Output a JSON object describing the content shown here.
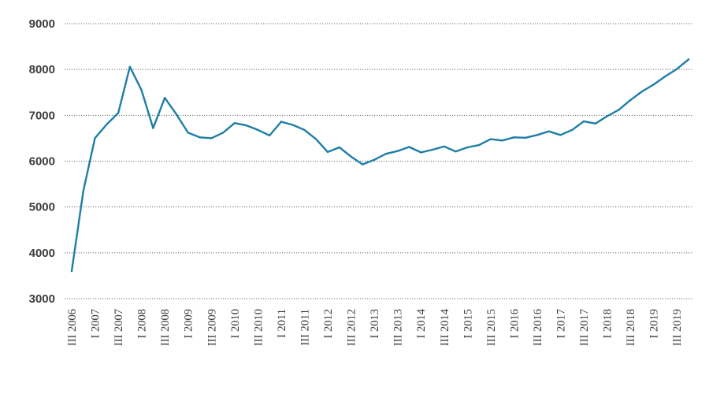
{
  "chart_data": {
    "type": "line",
    "title": "",
    "xlabel": "",
    "ylabel": "",
    "ylim": [
      3000,
      9000
    ],
    "y_ticks": [
      "3000",
      "4000",
      "5000",
      "6000",
      "7000",
      "8000",
      "9000"
    ],
    "grid": true,
    "legend": "none",
    "x_tick_labels": [
      "III 2006",
      "I 2007",
      "III 2007",
      "I 2008",
      "III 2008",
      "I 2009",
      "III 2009",
      "I 2010",
      "III 2010",
      "I 2011",
      "III 2011",
      "I 2012",
      "III 2012",
      "I 2013",
      "III 2013",
      "I 2014",
      "III 2014",
      "I 2015",
      "III 2015",
      "I 2016",
      "III 2016",
      "I 2017",
      "III 2017",
      "I 2018",
      "III 2018",
      "I 2019",
      "III 2019"
    ],
    "x": [
      "III 2006",
      "IV 2006",
      "I 2007",
      "II 2007",
      "III 2007",
      "IV 2007",
      "I 2008",
      "II 2008",
      "III 2008",
      "IV 2008",
      "I 2009",
      "II 2009",
      "III 2009",
      "IV 2009",
      "I 2010",
      "II 2010",
      "III 2010",
      "IV 2010",
      "I 2011",
      "II 2011",
      "III 2011",
      "IV 2011",
      "I 2012",
      "II 2012",
      "III 2012",
      "IV 2012",
      "I 2013",
      "II 2013",
      "III 2013",
      "IV 2013",
      "I 2014",
      "II 2014",
      "III 2014",
      "IV 2014",
      "I 2015",
      "II 2015",
      "III 2015",
      "IV 2015",
      "I 2016",
      "II 2016",
      "III 2016",
      "IV 2016",
      "I 2017",
      "II 2017",
      "III 2017",
      "IV 2017",
      "I 2018",
      "II 2018",
      "III 2018",
      "IV 2018",
      "I 2019",
      "II 2019",
      "III 2019",
      "IV 2019"
    ],
    "series": [
      {
        "color": "#1f7ea6",
        "values": [
          3600,
          5350,
          6500,
          6800,
          7050,
          8060,
          7550,
          6720,
          7380,
          7020,
          6620,
          6520,
          6500,
          6620,
          6830,
          6780,
          6680,
          6560,
          6860,
          6790,
          6680,
          6480,
          6200,
          6300,
          6100,
          5930,
          6030,
          6160,
          6220,
          6310,
          6190,
          6250,
          6320,
          6210,
          6300,
          6350,
          6480,
          6450,
          6520,
          6510,
          6570,
          6650,
          6570,
          6680,
          6870,
          6820,
          6980,
          7120,
          7330,
          7520,
          7670,
          7850,
          8010,
          8220
        ]
      }
    ]
  }
}
